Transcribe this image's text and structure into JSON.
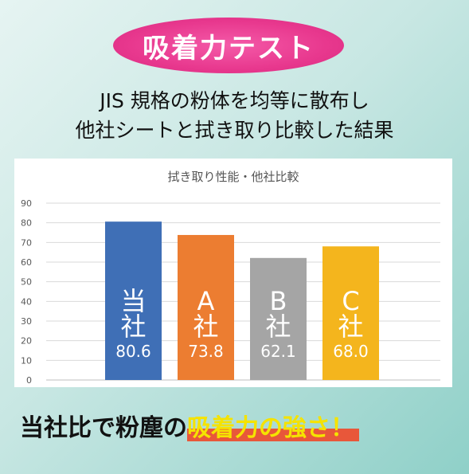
{
  "header": {
    "badge": "吸着力テスト",
    "subtitle_line1": "JIS 規格の粉体を均等に散布し",
    "subtitle_line2": "他社シートと拭き取り比較した結果"
  },
  "chart_data": {
    "type": "bar",
    "title": "拭き取り性能・他社比較",
    "ylim": [
      0,
      90
    ],
    "yticks": [
      0,
      10,
      20,
      30,
      40,
      50,
      60,
      70,
      80,
      90
    ],
    "grid": true,
    "categories": [
      "当社",
      "A社",
      "B社",
      "C社"
    ],
    "bar_labels": [
      {
        "line1": "当",
        "line2": "社",
        "value": "80.6"
      },
      {
        "line1": "A",
        "line2": "社",
        "value": "73.8"
      },
      {
        "line1": "B",
        "line2": "社",
        "value": "62.1"
      },
      {
        "line1": "C",
        "line2": "社",
        "value": "68.0"
      }
    ],
    "values": [
      80.6,
      73.8,
      62.1,
      68.0
    ],
    "colors": [
      "#3f6fb6",
      "#ec7d31",
      "#a5a5a5",
      "#f4b51d"
    ]
  },
  "footer": {
    "text_plain": "当社比で粉塵の",
    "text_highlight": "吸着力の強さ！"
  }
}
